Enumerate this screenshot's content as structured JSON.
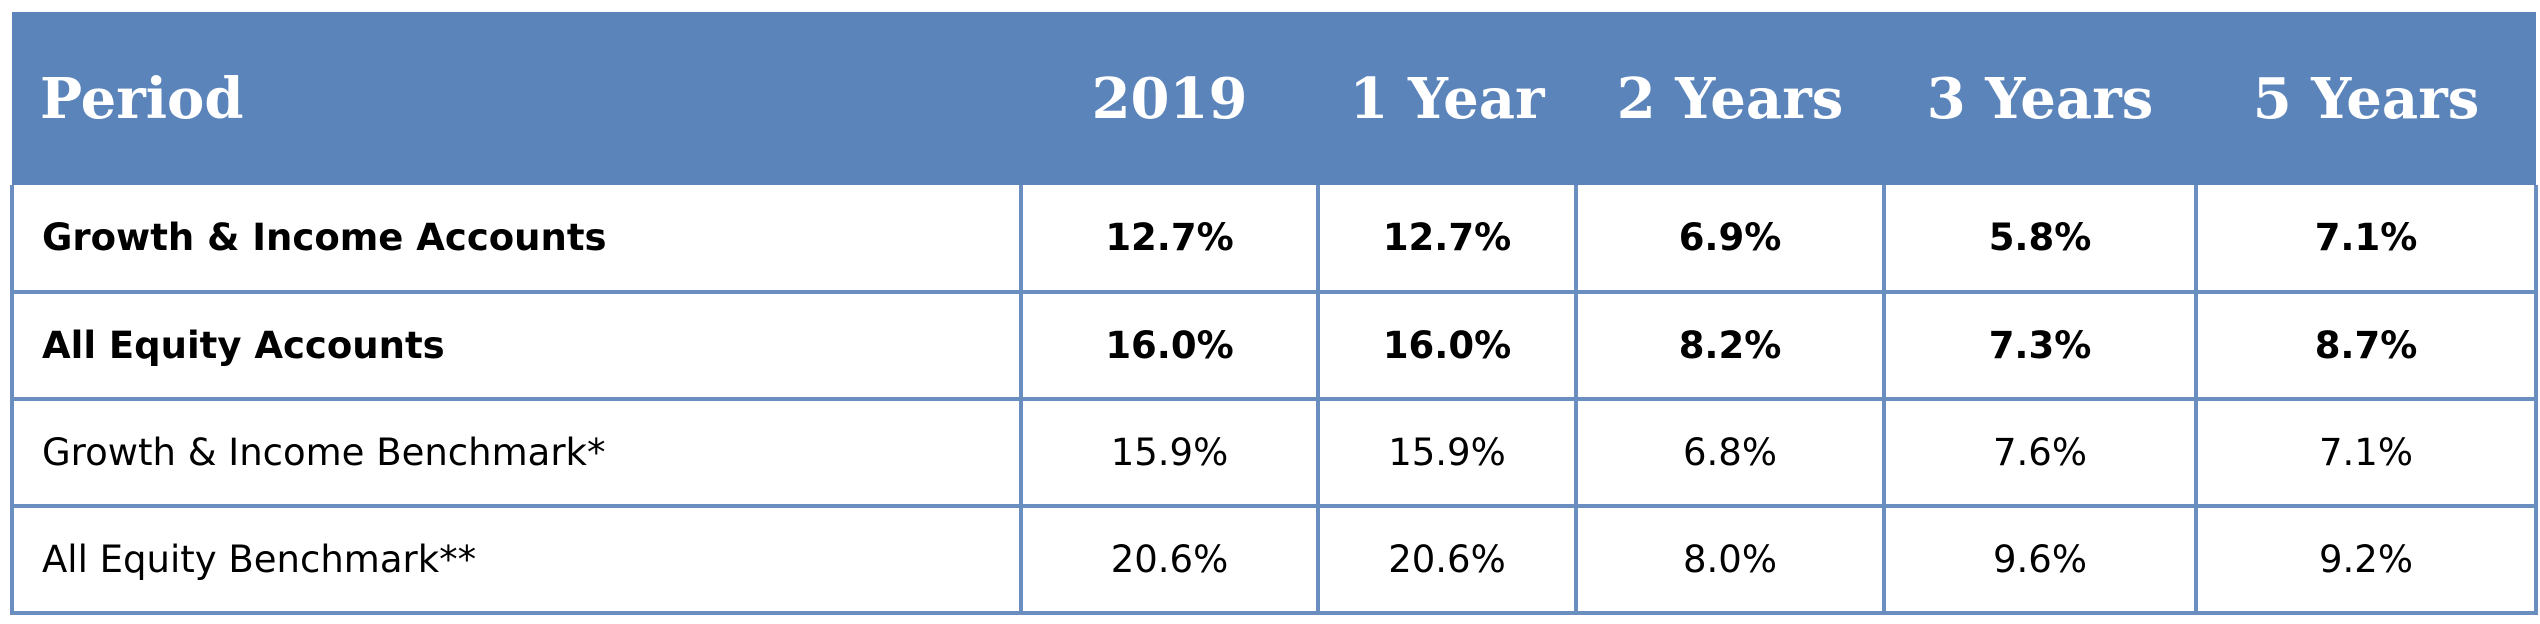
{
  "table": {
    "header": {
      "label": "Period",
      "columns": [
        "2019",
        "1 Year",
        "2 Years",
        "3 Years",
        "5 Years"
      ]
    },
    "rows": [
      {
        "label": "Growth & Income Accounts",
        "bold": true,
        "values": [
          "12.7%",
          "12.7%",
          "6.9%",
          "5.8%",
          "7.1%"
        ]
      },
      {
        "label": "All Equity Accounts",
        "bold": true,
        "values": [
          "16.0%",
          "16.0%",
          "8.2%",
          "7.3%",
          "8.7%"
        ]
      },
      {
        "label": "Growth & Income Benchmark*",
        "bold": false,
        "values": [
          "15.9%",
          "15.9%",
          "6.8%",
          "7.6%",
          "7.1%"
        ]
      },
      {
        "label": "All Equity Benchmark**",
        "bold": false,
        "values": [
          "20.6%",
          "20.6%",
          "8.0%",
          "9.6%",
          "9.2%"
        ]
      }
    ]
  },
  "colors": {
    "header_background": "#5b84bb",
    "header_text": "#ffffff",
    "grid_lines": "#6a8ec0",
    "body_text": "#000000"
  }
}
